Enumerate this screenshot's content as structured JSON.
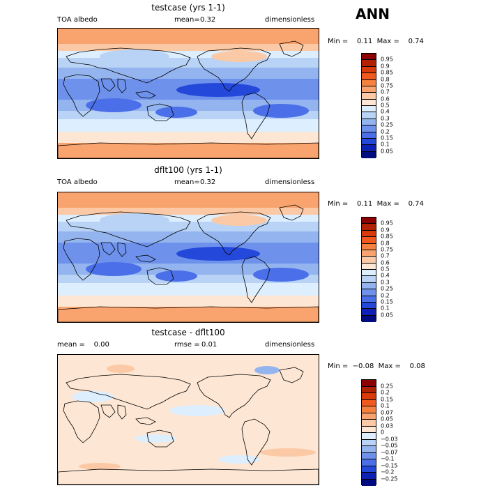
{
  "season": "ANN",
  "panels": [
    {
      "title": "testcase (yrs 1-1)",
      "left_label": "TOA albedo",
      "mid_prefix": "mean=",
      "mid_value": "0.32",
      "right_label": "dimensionless",
      "stats": "Min =    0.11  Max =    0.74",
      "levels": [
        "0.95",
        "0.9",
        "0.85",
        "0.8",
        "0.75",
        "0.7",
        "0.6",
        "0.5",
        "0.4",
        "0.3",
        "0.25",
        "0.2",
        "0.15",
        "0.1",
        "0.05"
      ],
      "colors": [
        "#8b0000",
        "#b22200",
        "#d93a0a",
        "#f05a1e",
        "#f7813f",
        "#f9a46e",
        "#fbc9a5",
        "#fde6d3",
        "#ddeeff",
        "#b8d3f5",
        "#93b4ef",
        "#6e92ec",
        "#4a6fe8",
        "#2448da",
        "#0d22b4",
        "#000b80"
      ]
    },
    {
      "title": "dflt100 (yrs 1-1)",
      "left_label": "TOA albedo",
      "mid_prefix": "mean=",
      "mid_value": "0.32",
      "right_label": "dimensionless",
      "stats": "Min =    0.11  Max =    0.74",
      "levels": [
        "0.95",
        "0.9",
        "0.85",
        "0.8",
        "0.75",
        "0.7",
        "0.6",
        "0.5",
        "0.4",
        "0.3",
        "0.25",
        "0.2",
        "0.15",
        "0.1",
        "0.05"
      ],
      "colors": [
        "#8b0000",
        "#b22200",
        "#d93a0a",
        "#f05a1e",
        "#f7813f",
        "#f9a46e",
        "#fbc9a5",
        "#fde6d3",
        "#ddeeff",
        "#b8d3f5",
        "#93b4ef",
        "#6e92ec",
        "#4a6fe8",
        "#2448da",
        "#0d22b4",
        "#000b80"
      ]
    },
    {
      "title": "testcase - dflt100",
      "left_label": "mean =    0.00",
      "mid_prefix": "rmse =",
      "mid_value": "0.01",
      "right_label": "dimensionless",
      "stats": "Min =  −0.08  Max =    0.08",
      "levels": [
        "0.25",
        "0.2",
        "0.15",
        "0.1",
        "0.07",
        "0.05",
        "0.03",
        "0",
        "−0.03",
        "−0.05",
        "−0.07",
        "−0.1",
        "−0.15",
        "−0.2",
        "−0.25"
      ],
      "colors": [
        "#8b0000",
        "#b22200",
        "#d93a0a",
        "#f05a1e",
        "#f7813f",
        "#f9a46e",
        "#fbc9a5",
        "#fde6d3",
        "#ddeeff",
        "#b8d3f5",
        "#93b4ef",
        "#6e92ec",
        "#4a6fe8",
        "#2448da",
        "#0d22b4",
        "#000b80"
      ]
    }
  ],
  "chart_data": {
    "type": "heatmap",
    "title": "ANN",
    "panels": [
      {
        "title": "testcase (yrs 1-1)",
        "variable": "TOA albedo",
        "units": "dimensionless",
        "mean": 0.32,
        "min": 0.11,
        "max": 0.74,
        "contour_levels": [
          0.05,
          0.1,
          0.15,
          0.2,
          0.25,
          0.3,
          0.4,
          0.5,
          0.6,
          0.7,
          0.75,
          0.8,
          0.85,
          0.9,
          0.95
        ]
      },
      {
        "title": "dflt100 (yrs 1-1)",
        "variable": "TOA albedo",
        "units": "dimensionless",
        "mean": 0.32,
        "min": 0.11,
        "max": 0.74,
        "contour_levels": [
          0.05,
          0.1,
          0.15,
          0.2,
          0.25,
          0.3,
          0.4,
          0.5,
          0.6,
          0.7,
          0.75,
          0.8,
          0.85,
          0.9,
          0.95
        ]
      },
      {
        "title": "testcase - dflt100",
        "units": "dimensionless",
        "mean": 0.0,
        "rmse": 0.01,
        "min": -0.08,
        "max": 0.08,
        "contour_levels": [
          -0.25,
          -0.2,
          -0.15,
          -0.1,
          -0.07,
          -0.05,
          -0.03,
          0,
          0.03,
          0.05,
          0.07,
          0.1,
          0.15,
          0.2,
          0.25
        ]
      }
    ]
  }
}
